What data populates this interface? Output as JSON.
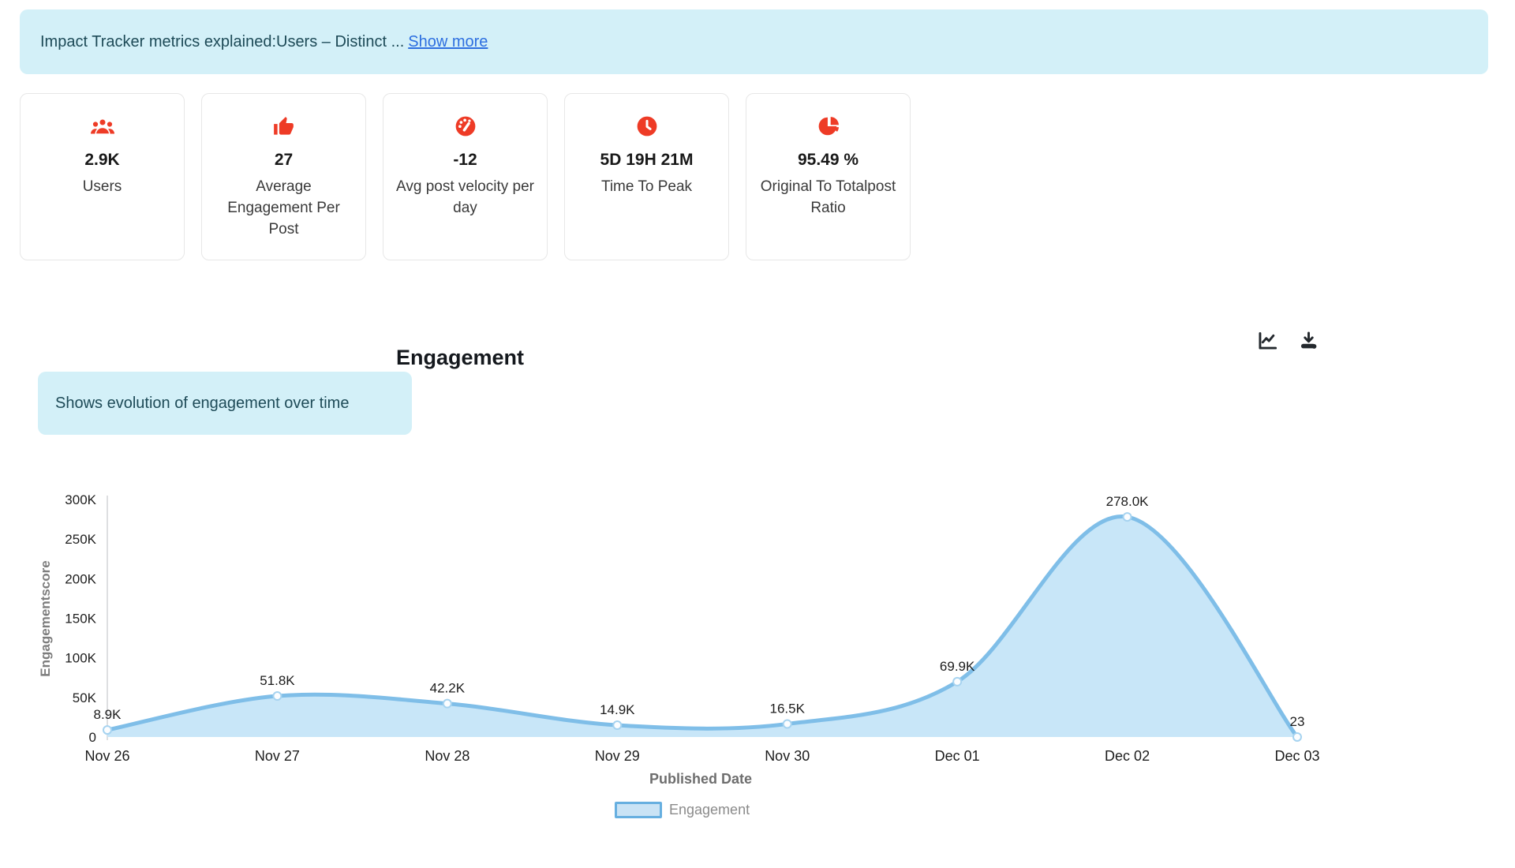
{
  "banner": {
    "text": "Impact Tracker metrics explained:Users – Distinct ...",
    "show_more_label": "Show more"
  },
  "cards": [
    {
      "icon": "users-icon",
      "value": "2.9K",
      "label": "Users"
    },
    {
      "icon": "thumbs-up-icon",
      "value": "27",
      "label": "Average Engagement Per Post"
    },
    {
      "icon": "gauge-icon",
      "value": "-12",
      "label": "Avg post velocity per day"
    },
    {
      "icon": "clock-icon",
      "value": "5D 19H 21M",
      "label": "Time To Peak"
    },
    {
      "icon": "pie-chart-icon",
      "value": "95.49 %",
      "label": "Original To Totalpost Ratio"
    }
  ],
  "section": {
    "title": "Engagement",
    "tooltip": "Shows evolution of engagement over time"
  },
  "chart_data": {
    "type": "area",
    "x": [
      "Nov 26",
      "Nov 27",
      "Nov 28",
      "Nov 29",
      "Nov 30",
      "Dec 01",
      "Dec 02",
      "Dec 03"
    ],
    "values": [
      8900,
      51800,
      42200,
      14900,
      16500,
      69900,
      278000,
      23
    ],
    "point_labels": [
      "8.9K",
      "51.8K",
      "42.2K",
      "14.9K",
      "16.5K",
      "69.9K",
      "278.0K",
      "23"
    ],
    "title": "Engagement",
    "xlabel": "Published Date",
    "ylabel": "Engagementscore",
    "ylim": [
      0,
      300000
    ],
    "ytick_labels": [
      "0",
      "50K",
      "100K",
      "150K",
      "200K",
      "250K",
      "300K"
    ],
    "legend": [
      "Engagement"
    ],
    "legend_position": "bottom",
    "grid": false,
    "smooth": true,
    "line_color": "#7FBEE8",
    "fill_color": "#C8E6F8",
    "marker_stroke": "#A6D3F0",
    "marker_fill": "#FBFDFF"
  },
  "colors": {
    "accent_red": "#EE3B26",
    "info_bg": "#D3F0F8",
    "info_text": "#1D4A57",
    "link_blue": "#2D6FE0",
    "legend_border": "#66AFE0",
    "legend_fill": "#C9E3F5",
    "axis_text": "#1E1E1E",
    "axis_muted": "#6E6E6E"
  }
}
